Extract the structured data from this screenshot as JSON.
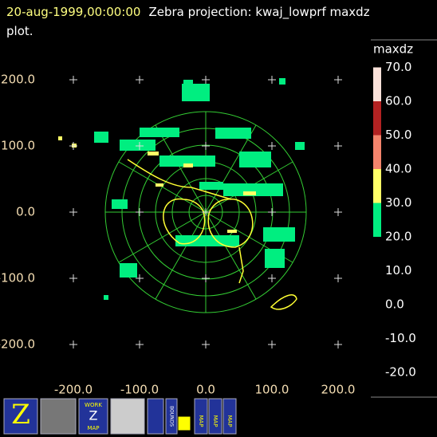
{
  "chart_data": {
    "type": "ppi",
    "date": "20-aug-1999,00:00:00",
    "title": "Zebra projection: kwaj_lowprf maxdz plot.",
    "xlim": [
      -250,
      250
    ],
    "ylim": [
      -250,
      250
    ],
    "xticks": [
      {
        "value": -200,
        "label": "-200.0"
      },
      {
        "value": -100,
        "label": "-100.0"
      },
      {
        "value": 0,
        "label": "0.0"
      },
      {
        "value": 100,
        "label": "100.0"
      },
      {
        "value": 200,
        "label": "200.0"
      }
    ],
    "yticks": [
      {
        "value": 200,
        "label": "200.0"
      },
      {
        "value": 100,
        "label": "100.0"
      },
      {
        "value": 0,
        "label": "0.0"
      },
      {
        "value": -100,
        "label": "-100.0"
      },
      {
        "value": -200,
        "label": "-200.0"
      }
    ],
    "colorbar": {
      "title": "maxdz",
      "ticks": [
        {
          "value": 70,
          "label": "70.0"
        },
        {
          "value": 60,
          "label": "60.0"
        },
        {
          "value": 50,
          "label": "50.0"
        },
        {
          "value": 40,
          "label": "40.0"
        },
        {
          "value": 30,
          "label": "30.0"
        },
        {
          "value": 20,
          "label": "20.0"
        },
        {
          "value": 10,
          "label": "10.0"
        },
        {
          "value": 0,
          "label": "0.0"
        },
        {
          "value": -10,
          "label": "-10.0"
        },
        {
          "value": -20,
          "label": "-20.0"
        }
      ],
      "bands": [
        {
          "from": 60,
          "to": 70,
          "color": "#fbe2da"
        },
        {
          "from": 50,
          "to": 60,
          "color": "#b22222"
        },
        {
          "from": 40,
          "to": 50,
          "color": "#f4846c"
        },
        {
          "from": 30,
          "to": 40,
          "color": "#ffff66"
        },
        {
          "from": 20,
          "to": 30,
          "color": "#00ee80"
        }
      ]
    },
    "toolbar": {
      "work_map": [
        "WORK",
        "Z",
        "MAP"
      ],
      "bounds": "BOUNDS",
      "map_buttons": [
        "MAP",
        "MAP",
        "MAP"
      ]
    }
  }
}
